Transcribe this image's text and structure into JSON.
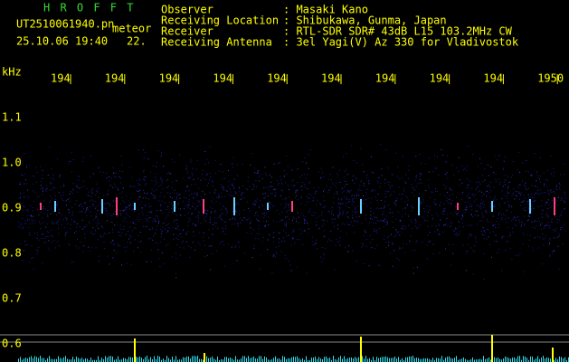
{
  "app": {
    "name": "H R O F F T",
    "file": "UT2510061940.pn",
    "tag": "meteor",
    "datetime": "25.10.06 19:40",
    "count": "22.",
    "info": [
      {
        "label": "Observer",
        "value": ": Masaki Kano"
      },
      {
        "label": "Receiving Location",
        "value": ": Shibukawa, Gunma, Japan"
      },
      {
        "label": "Receiver",
        "value": ": RTL-SDR SDR# 43dB L15 103.2MHz CW"
      },
      {
        "label": "Receiving Antenna",
        "value": ": 3el Yagi(V) Az 330 for Vladivostok"
      }
    ],
    "y_axis": {
      "unit": "kHz",
      "labels": [
        "1.1",
        "1.0",
        "0.9",
        "0.8",
        "0.7",
        "0.6"
      ]
    },
    "x_axis": {
      "labels": [
        "194",
        "194",
        "194",
        "194",
        "194",
        "194",
        "194",
        "194",
        "194",
        "1950"
      ]
    }
  }
}
